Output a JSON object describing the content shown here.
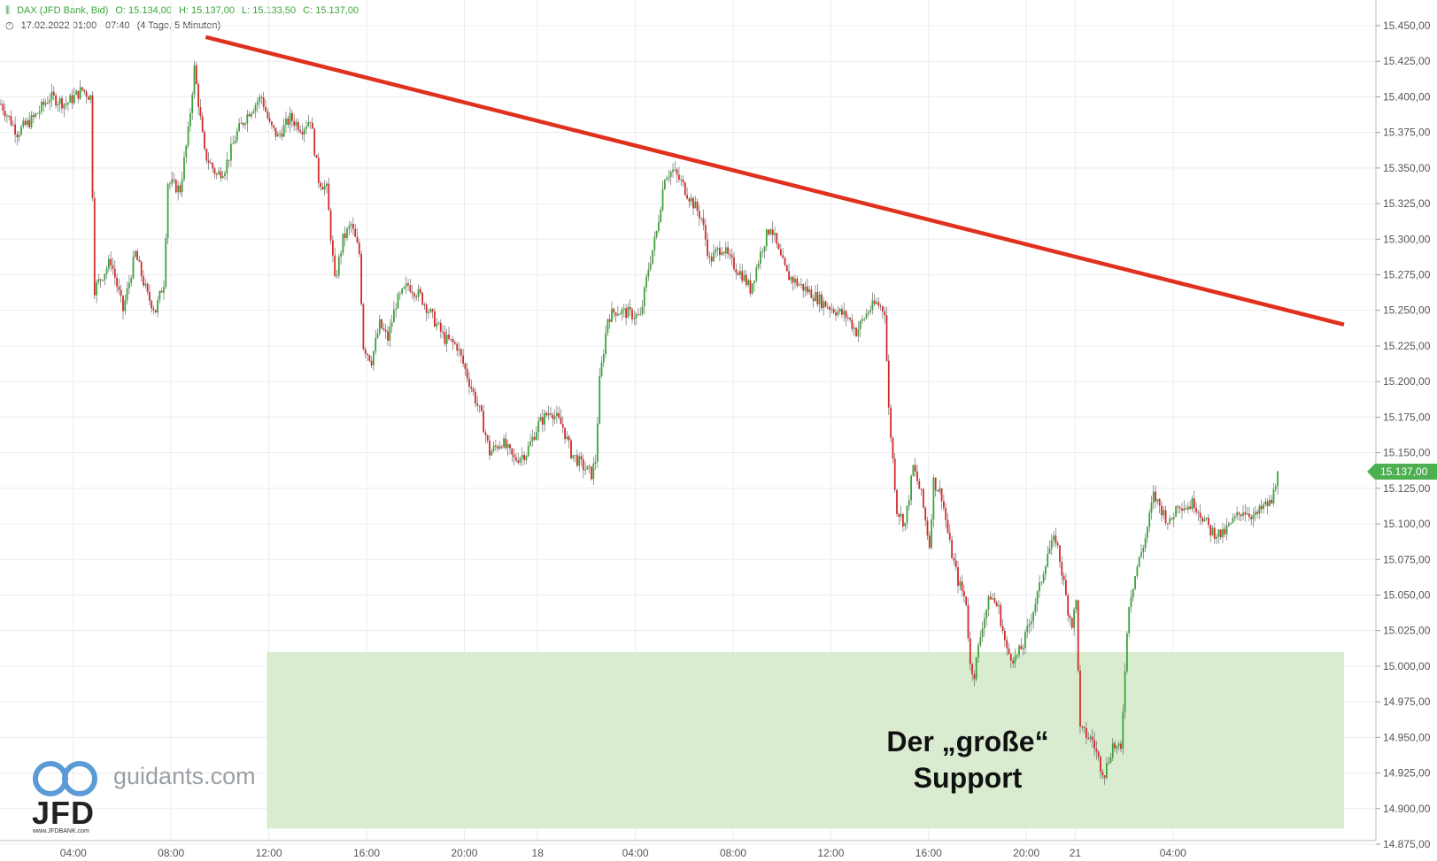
{
  "header": {
    "instrument": "DAX (JFD Bank, Bid)",
    "open": "O: 15.134,00",
    "high": "H: 15.137,00",
    "low": "L: 15.133,50",
    "close": "C: 15.137,00",
    "range": "17.02.2022 01:00 - 07:40",
    "period": "(4 Tage, 5 Minuten)",
    "clock_icon": "clock-icon",
    "candle_icon": "candlestick-icon"
  },
  "last_price_label": "15.137,00",
  "colors": {
    "up": "#3aa53a",
    "down": "#d42a2a",
    "trendline": "#e0301e",
    "support_zone": "#d9ecd0",
    "grid": "#ececec",
    "badge": "#4caf50"
  },
  "annotation": {
    "line1": "Der „große“",
    "line2": "Support"
  },
  "branding": {
    "site": "guidants.com",
    "logo": "JFD",
    "small": "www.JFDBANK.com"
  },
  "chart_data": {
    "type": "candlestick",
    "title": "",
    "ylim": [
      14875,
      15460
    ],
    "y_ticks": [
      14875,
      14900,
      14925,
      14950,
      14975,
      15000,
      15025,
      15050,
      15075,
      15100,
      15125,
      15150,
      15175,
      15200,
      15225,
      15250,
      15275,
      15300,
      15325,
      15350,
      15375,
      15400,
      15425,
      15450
    ],
    "y_tick_labels": [
      "14.875,00",
      "14.900,00",
      "14.925,00",
      "14.950,00",
      "14.975,00",
      "15.000,00",
      "15.025,00",
      "15.050,00",
      "15.075,00",
      "15.100,00",
      "15.125,00",
      "15.150,00",
      "15.175,00",
      "15.200,00",
      "15.225,00",
      "15.250,00",
      "15.275,00",
      "15.300,00",
      "15.325,00",
      "15.350,00",
      "15.375,00",
      "15.400,00",
      "15.425,00",
      "15.450,00"
    ],
    "x_ticks": [
      {
        "i": 36,
        "label": "04:00"
      },
      {
        "i": 84,
        "label": "08:00"
      },
      {
        "i": 132,
        "label": "12:00"
      },
      {
        "i": 180,
        "label": "16:00"
      },
      {
        "i": 228,
        "label": "20:00"
      },
      {
        "i": 264,
        "label": "18"
      },
      {
        "i": 312,
        "label": "04:00"
      },
      {
        "i": 360,
        "label": "08:00"
      },
      {
        "i": 408,
        "label": "12:00"
      },
      {
        "i": 456,
        "label": "16:00"
      },
      {
        "i": 504,
        "label": "20:00"
      },
      {
        "i": 528,
        "label": "21"
      },
      {
        "i": 576,
        "label": "04:00"
      }
    ],
    "path_points": [
      [
        0,
        15395
      ],
      [
        8,
        15375
      ],
      [
        16,
        15385
      ],
      [
        24,
        15400
      ],
      [
        32,
        15395
      ],
      [
        40,
        15405
      ],
      [
        44,
        15400
      ],
      [
        46,
        15265
      ],
      [
        54,
        15285
      ],
      [
        60,
        15250
      ],
      [
        66,
        15290
      ],
      [
        72,
        15260
      ],
      [
        76,
        15250
      ],
      [
        80,
        15270
      ],
      [
        82,
        15340
      ],
      [
        88,
        15335
      ],
      [
        92,
        15375
      ],
      [
        95,
        15420
      ],
      [
        100,
        15360
      ],
      [
        106,
        15345
      ],
      [
        110,
        15350
      ],
      [
        116,
        15375
      ],
      [
        122,
        15390
      ],
      [
        128,
        15400
      ],
      [
        132,
        15380
      ],
      [
        136,
        15372
      ],
      [
        142,
        15385
      ],
      [
        148,
        15378
      ],
      [
        152,
        15385
      ],
      [
        156,
        15342
      ],
      [
        160,
        15335
      ],
      [
        164,
        15270
      ],
      [
        168,
        15300
      ],
      [
        172,
        15310
      ],
      [
        176,
        15290
      ],
      [
        178,
        15225
      ],
      [
        182,
        15215
      ],
      [
        186,
        15240
      ],
      [
        190,
        15230
      ],
      [
        194,
        15255
      ],
      [
        200,
        15268
      ],
      [
        206,
        15260
      ],
      [
        212,
        15245
      ],
      [
        218,
        15230
      ],
      [
        224,
        15225
      ],
      [
        230,
        15200
      ],
      [
        236,
        15175
      ],
      [
        240,
        15150
      ],
      [
        246,
        15158
      ],
      [
        252,
        15145
      ],
      [
        258,
        15150
      ],
      [
        264,
        15170
      ],
      [
        270,
        15180
      ],
      [
        276,
        15168
      ],
      [
        280,
        15150
      ],
      [
        286,
        15140
      ],
      [
        290,
        15135
      ],
      [
        292,
        15145
      ],
      [
        294,
        15200
      ],
      [
        298,
        15245
      ],
      [
        302,
        15250
      ],
      [
        308,
        15248
      ],
      [
        314,
        15245
      ],
      [
        318,
        15280
      ],
      [
        322,
        15305
      ],
      [
        326,
        15345
      ],
      [
        330,
        15348
      ],
      [
        334,
        15340
      ],
      [
        338,
        15330
      ],
      [
        344,
        15315
      ],
      [
        348,
        15285
      ],
      [
        354,
        15295
      ],
      [
        358,
        15285
      ],
      [
        364,
        15275
      ],
      [
        368,
        15265
      ],
      [
        374,
        15295
      ],
      [
        378,
        15310
      ],
      [
        382,
        15290
      ],
      [
        386,
        15275
      ],
      [
        392,
        15268
      ],
      [
        398,
        15262
      ],
      [
        404,
        15255
      ],
      [
        410,
        15250
      ],
      [
        416,
        15245
      ],
      [
        420,
        15235
      ],
      [
        426,
        15250
      ],
      [
        430,
        15255
      ],
      [
        434,
        15250
      ],
      [
        436,
        15180
      ],
      [
        440,
        15110
      ],
      [
        444,
        15100
      ],
      [
        448,
        15140
      ],
      [
        452,
        15120
      ],
      [
        456,
        15085
      ],
      [
        458,
        15130
      ],
      [
        462,
        15120
      ],
      [
        466,
        15085
      ],
      [
        470,
        15060
      ],
      [
        474,
        15045
      ],
      [
        476,
        15000
      ],
      [
        478,
        14995
      ],
      [
        482,
        15030
      ],
      [
        486,
        15050
      ],
      [
        490,
        15040
      ],
      [
        494,
        15010
      ],
      [
        498,
        15005
      ],
      [
        502,
        15015
      ],
      [
        506,
        15035
      ],
      [
        510,
        15055
      ],
      [
        514,
        15080
      ],
      [
        518,
        15090
      ],
      [
        520,
        15075
      ],
      [
        524,
        15040
      ],
      [
        526,
        15030
      ],
      [
        528,
        15045
      ],
      [
        530,
        14955
      ],
      [
        536,
        14948
      ],
      [
        540,
        14930
      ],
      [
        542,
        14925
      ],
      [
        546,
        14945
      ],
      [
        550,
        14940
      ],
      [
        552,
        15000
      ],
      [
        554,
        15045
      ],
      [
        558,
        15070
      ],
      [
        562,
        15090
      ],
      [
        566,
        15120
      ],
      [
        570,
        15110
      ],
      [
        574,
        15100
      ],
      [
        578,
        15115
      ],
      [
        582,
        15112
      ],
      [
        586,
        15115
      ],
      [
        590,
        15105
      ],
      [
        594,
        15095
      ],
      [
        600,
        15092
      ],
      [
        604,
        15100
      ],
      [
        610,
        15110
      ],
      [
        616,
        15105
      ],
      [
        620,
        15112
      ],
      [
        624,
        15115
      ],
      [
        627,
        15137
      ]
    ],
    "trendline": {
      "start": {
        "i": 101,
        "value": 15442
      },
      "end": {
        "i": 660,
        "value": 15240
      }
    },
    "support_zone": {
      "from_i": 131,
      "to_i": 660,
      "low": 14886,
      "high": 15010
    },
    "last_price": 15137
  }
}
